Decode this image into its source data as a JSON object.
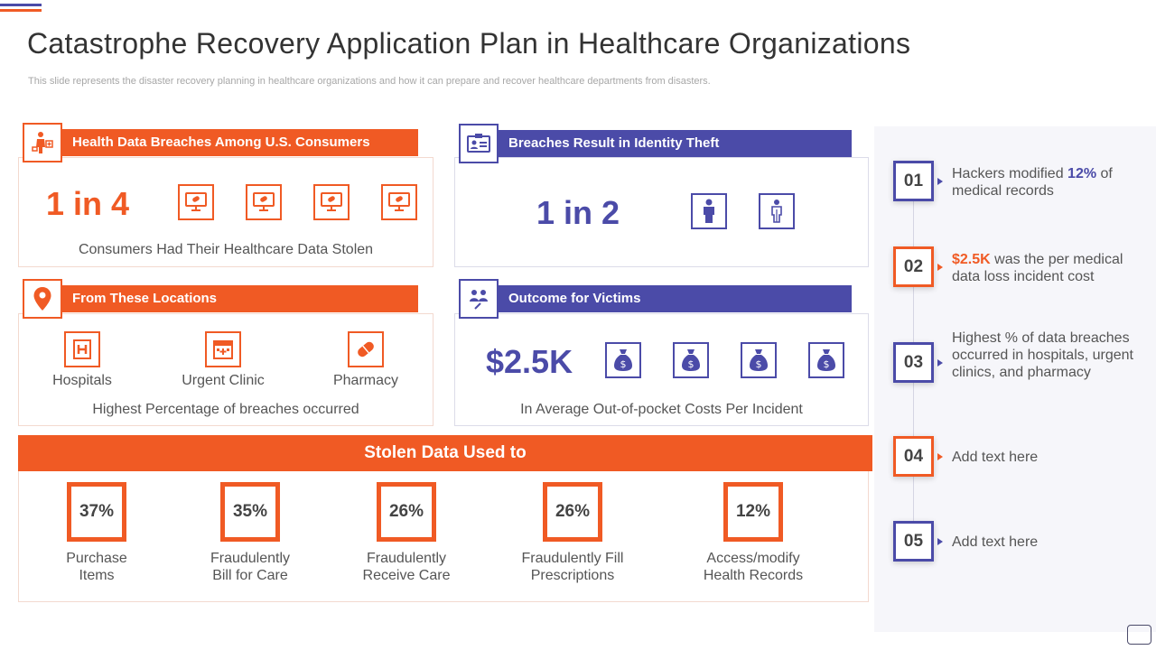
{
  "slide": {
    "title": "Catastrophe Recovery Application Plan in Healthcare Organizations",
    "subtitle": "This slide represents the disaster recovery planning in healthcare organizations and how it can prepare and recover healthcare departments from disasters."
  },
  "colors": {
    "orange": "#f05a24",
    "blue": "#4b4ba8"
  },
  "breaches": {
    "heading": "Health Data Breaches Among U.S. Consumers",
    "stat": "1 in 4",
    "caption": "Consumers Had Their Healthcare  Data Stolen",
    "icon": "person-medical-icon",
    "item_icon": "monitor-pill-icon"
  },
  "identity": {
    "heading": "Breaches Result in Identity Theft",
    "stat": "1 in 2",
    "icon": "id-card-icon",
    "item_icons": [
      "person-filled-icon",
      "person-outline-icon"
    ]
  },
  "locations": {
    "heading": "From These  Locations",
    "icon": "location-pin-icon",
    "items": [
      {
        "label": "Hospitals",
        "icon": "hospital-icon"
      },
      {
        "label": "Urgent  Clinic",
        "icon": "clinic-icon"
      },
      {
        "label": "Pharmacy",
        "icon": "pill-icon"
      }
    ],
    "caption": "Highest Percentage of breaches occurred"
  },
  "outcome": {
    "heading": "Outcome for Victims",
    "stat": "$2.5K",
    "caption": "In Average Out-of-pocket  Costs Per Incident",
    "icon": "people-icon",
    "item_icon": "money-bag-icon"
  },
  "stolen": {
    "heading": "Stolen Data Used to",
    "items": [
      {
        "pct": "37%",
        "label_line1": "Purchase",
        "label_line2": "Items"
      },
      {
        "pct": "35%",
        "label_line1": "Fraudulently",
        "label_line2": "Bill for Care"
      },
      {
        "pct": "26%",
        "label_line1": "Fraudulently",
        "label_line2": "Receive Care"
      },
      {
        "pct": "26%",
        "label_line1": "Fraudulently  Fill",
        "label_line2": "Prescriptions"
      },
      {
        "pct": "12%",
        "label_line1": "Access/modify",
        "label_line2": "Health Records"
      }
    ]
  },
  "facts": [
    {
      "num": "01",
      "pre": "Hackers modified ",
      "hl": "12%",
      "post": " of medical records"
    },
    {
      "num": "02",
      "pre": "",
      "hl": "$2.5K",
      "post": " was the per medical data loss incident cost"
    },
    {
      "num": "03",
      "pre": "Highest % of data breaches occurred in hospitals, urgent clinics, and pharmacy",
      "hl": "",
      "post": ""
    },
    {
      "num": "04",
      "pre": "Add text here",
      "hl": "",
      "post": ""
    },
    {
      "num": "05",
      "pre": "Add text here",
      "hl": "",
      "post": ""
    }
  ]
}
